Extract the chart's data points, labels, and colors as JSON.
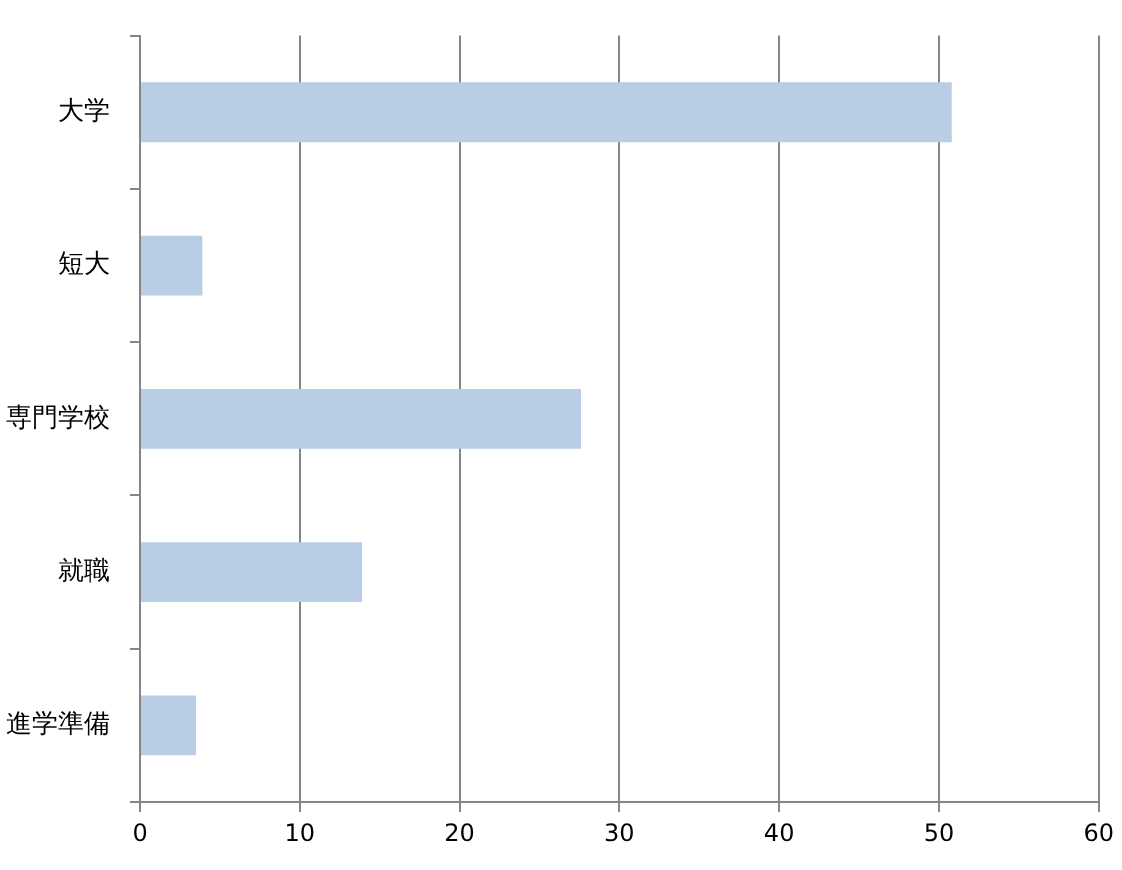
{
  "chart_data": {
    "type": "bar",
    "orientation": "horizontal",
    "categories": [
      "大学",
      "短大",
      "専門学校",
      "就職",
      "進学準備"
    ],
    "values": [
      50.8,
      3.9,
      27.6,
      13.9,
      3.5
    ],
    "color": "#b9cde5",
    "xlim": [
      0,
      60
    ],
    "xticks": [
      0,
      10,
      20,
      30,
      40,
      50,
      60
    ],
    "grid": "x"
  }
}
